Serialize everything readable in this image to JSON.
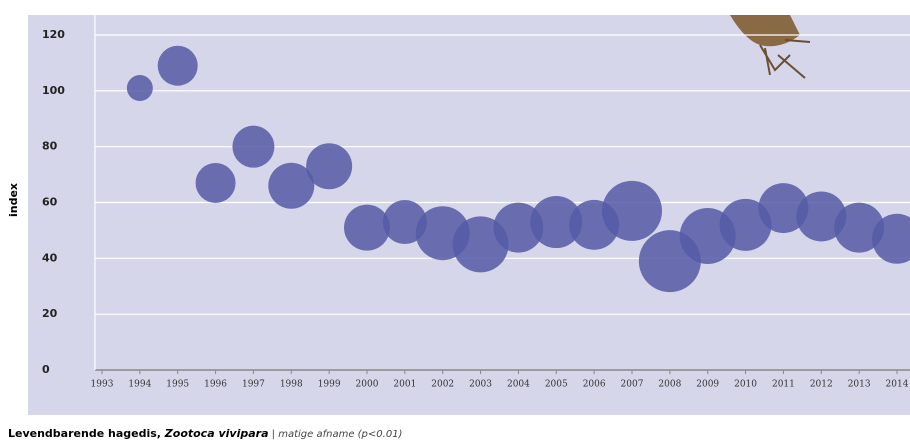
{
  "chart_data": {
    "type": "bubble",
    "y_label": "index",
    "caption": {
      "title": "Levendbarende hagedis, ",
      "species": "Zootoca vivipara",
      "trend": " | matige afname (p<0.01)"
    },
    "x": [
      1994,
      1995,
      1996,
      1997,
      1998,
      1999,
      2000,
      2001,
      2002,
      2003,
      2004,
      2005,
      2006,
      2007,
      2008,
      2009,
      2010,
      2011,
      2012,
      2013,
      2014
    ],
    "values": [
      101,
      109,
      67,
      80,
      66,
      73,
      51,
      53,
      49,
      45,
      51,
      53,
      52,
      57,
      39,
      48,
      52,
      58,
      55,
      51,
      47
    ],
    "sizes": [
      13,
      20,
      20,
      21,
      23,
      23,
      23,
      22,
      27,
      28,
      25,
      26,
      25,
      30,
      31,
      28,
      26,
      25,
      25,
      25,
      25
    ],
    "color": "#565aa6",
    "xlim": [
      1993,
      2014
    ],
    "xticks": [
      1993,
      1994,
      1995,
      1996,
      1997,
      1998,
      1999,
      2000,
      2001,
      2002,
      2003,
      2004,
      2005,
      2006,
      2007,
      2008,
      2009,
      2010,
      2011,
      2012,
      2013,
      2014
    ],
    "ylim": [
      0,
      120
    ],
    "yticks": [
      0,
      20,
      40,
      60,
      80,
      100,
      120
    ],
    "grid": true
  }
}
